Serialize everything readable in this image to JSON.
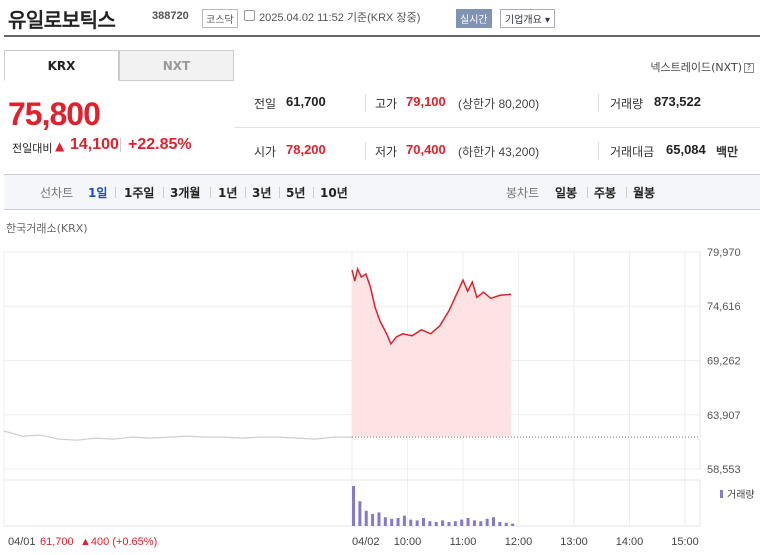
{
  "header": {
    "title": "유일로보틱스",
    "code": "388720",
    "market_badge": "코스닥",
    "timestamp": "2025.04.02 11:52  기준(KRX 장중)",
    "live_badge": "실시간",
    "company_button": "기업개요 ▾"
  },
  "market_tabs": [
    {
      "label": "KRX",
      "active": true
    },
    {
      "label": "NXT",
      "active": false
    }
  ],
  "nxt_link": "넥스트레이드(NXT)",
  "help_icon": "?",
  "price": {
    "current": "75,800",
    "change_label": "전일대비",
    "change_arrow": "▲",
    "change_value": "14,100",
    "change_rate": "+22.85%"
  },
  "stats": {
    "prev_close_label": "전일",
    "prev_close": "61,700",
    "high_label": "고가",
    "high": "79,100",
    "upper_limit": "(상한가 80,200)",
    "volume_label": "거래량",
    "volume": "873,522",
    "open_label": "시가",
    "open": "78,200",
    "low_label": "저가",
    "low": "70,400",
    "lower_limit": "(하한가 43,200)",
    "amount_label": "거래대금",
    "amount": "65,084",
    "amount_unit": "백만"
  },
  "period_bar": {
    "line_label": "선차트",
    "line_items": [
      "1일",
      "1주일",
      "3개월",
      "1년",
      "3년",
      "5년",
      "10년"
    ],
    "active": "1일",
    "candle_label": "봉차트",
    "candle_items": [
      "일봉",
      "주봉",
      "월봉"
    ]
  },
  "exchange_label": "한국거래소(KRX)",
  "colors": {
    "up": "#e0212d",
    "down": "#1a4fbf",
    "fill": "#fde3e3",
    "volume": "#8878c8"
  },
  "chart_data": {
    "type": "area",
    "y_ticks": [
      "79,970",
      "74,616",
      "69,262",
      "63,907",
      "58,553"
    ],
    "ylim": [
      58553,
      79970
    ],
    "x_ticks": [
      "04/01",
      "04/02",
      "10:00",
      "11:00",
      "12:00",
      "13:00",
      "14:00",
      "15:00"
    ],
    "prev_day_label": "04/01",
    "prev_day_close": "61,700",
    "prev_day_change": "▲400 (+0.65%)",
    "volume_label": "거래량",
    "today_series": [
      {
        "t": "09:00",
        "v": 78200
      },
      {
        "t": "09:03",
        "v": 77100
      },
      {
        "t": "09:06",
        "v": 78300
      },
      {
        "t": "09:10",
        "v": 77500
      },
      {
        "t": "09:15",
        "v": 77800
      },
      {
        "t": "09:20",
        "v": 76500
      },
      {
        "t": "09:25",
        "v": 74500
      },
      {
        "t": "09:30",
        "v": 73200
      },
      {
        "t": "09:38",
        "v": 71800
      },
      {
        "t": "09:42",
        "v": 70900
      },
      {
        "t": "09:48",
        "v": 71600
      },
      {
        "t": "09:55",
        "v": 71900
      },
      {
        "t": "10:05",
        "v": 71700
      },
      {
        "t": "10:15",
        "v": 72300
      },
      {
        "t": "10:25",
        "v": 71900
      },
      {
        "t": "10:35",
        "v": 72700
      },
      {
        "t": "10:45",
        "v": 74200
      },
      {
        "t": "10:55",
        "v": 76200
      },
      {
        "t": "11:00",
        "v": 77200
      },
      {
        "t": "11:05",
        "v": 76100
      },
      {
        "t": "11:10",
        "v": 77000
      },
      {
        "t": "11:15",
        "v": 75500
      },
      {
        "t": "11:22",
        "v": 76000
      },
      {
        "t": "11:30",
        "v": 75400
      },
      {
        "t": "11:40",
        "v": 75700
      },
      {
        "t": "11:52",
        "v": 75800
      }
    ],
    "prev_series": [
      62300,
      61800,
      61900,
      61500,
      61400,
      61600,
      61500,
      61700,
      61600,
      61700,
      61800,
      61700,
      61700,
      61600,
      61700,
      61700,
      61600,
      61500,
      61700,
      61700
    ],
    "today_volume": [
      100,
      62,
      38,
      30,
      34,
      22,
      18,
      20,
      26,
      16,
      14,
      20,
      12,
      10,
      14,
      10,
      12,
      16,
      20,
      14,
      12,
      18,
      22,
      10,
      8,
      6
    ]
  }
}
